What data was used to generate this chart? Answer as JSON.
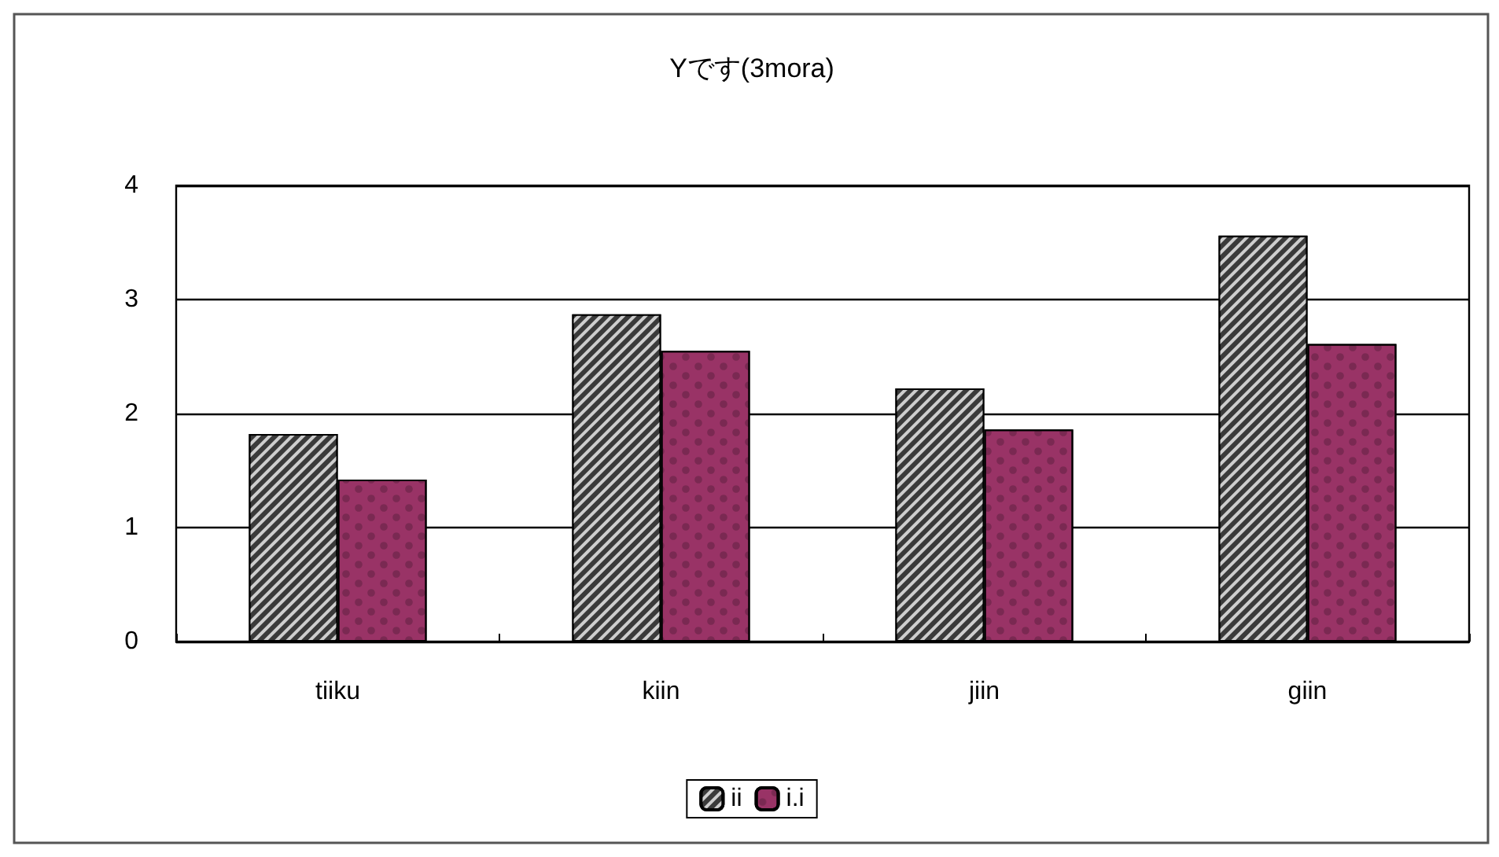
{
  "chart_data": {
    "type": "bar",
    "title": "Yです(3mora)",
    "categories": [
      "tiiku",
      "kiin",
      "jiin",
      "giin"
    ],
    "series": [
      {
        "name": "ii",
        "color": "#3a3a3a",
        "values": [
          1.82,
          2.87,
          2.22,
          3.56
        ]
      },
      {
        "name": "i.i",
        "color": "#993366",
        "values": [
          1.42,
          2.55,
          1.86,
          2.61
        ]
      }
    ],
    "ylim": [
      0,
      4
    ],
    "yticks": [
      0,
      1,
      2,
      3,
      4
    ],
    "grid": "y",
    "legend": "bottom"
  }
}
